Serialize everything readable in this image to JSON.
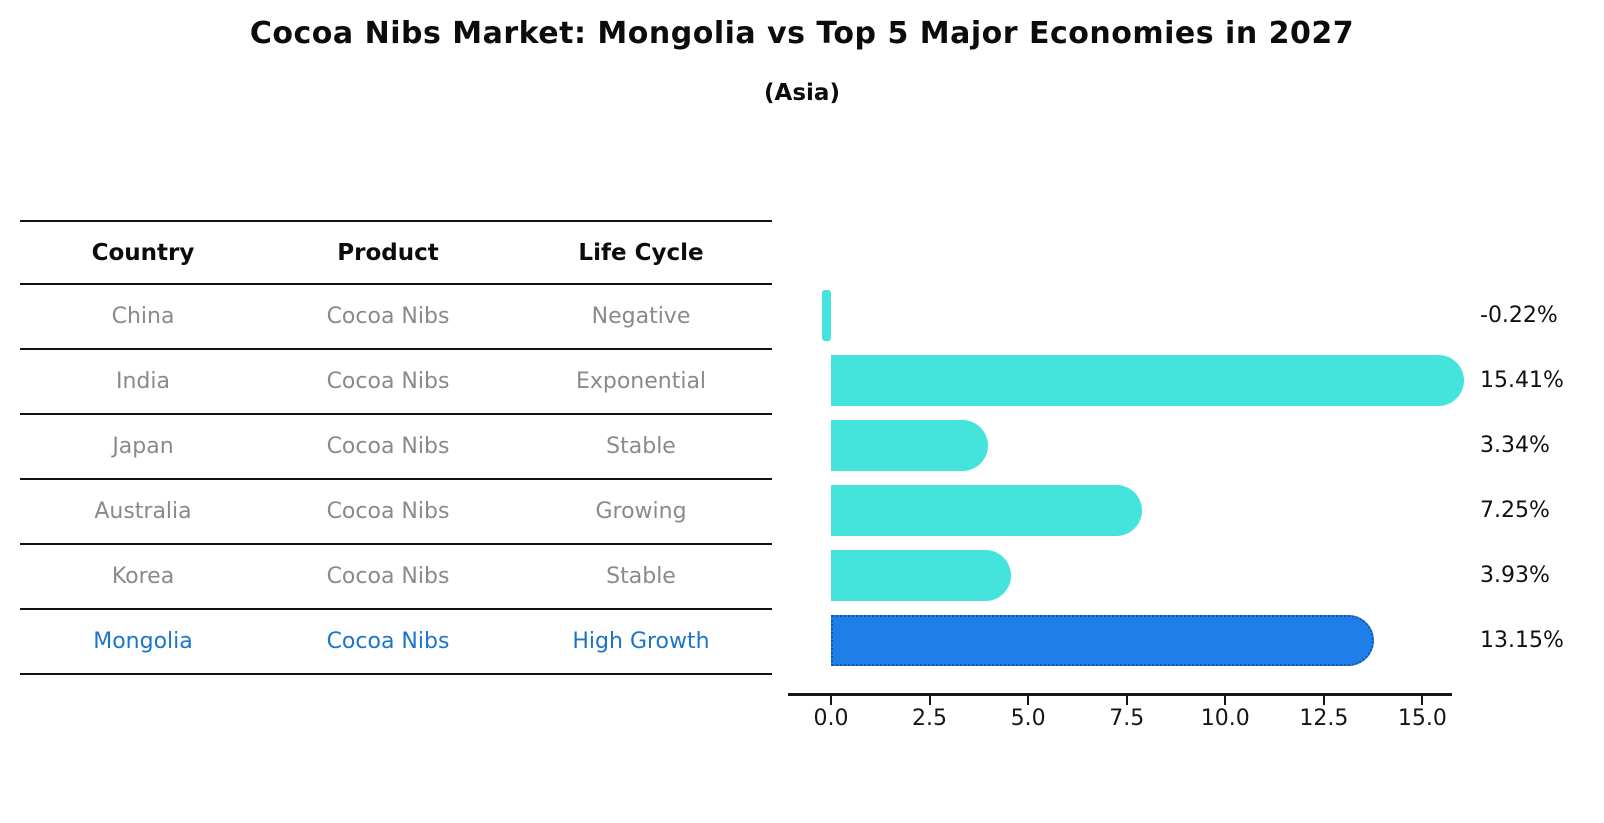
{
  "title": "Cocoa Nibs Market: Mongolia vs Top 5 Major Economies in 2027",
  "subtitle": "(Asia)",
  "table": {
    "headers": [
      "Country",
      "Product",
      "Life Cycle"
    ],
    "rows": [
      {
        "country": "China",
        "product": "Cocoa Nibs",
        "life_cycle": "Negative",
        "highlight": false
      },
      {
        "country": "India",
        "product": "Cocoa Nibs",
        "life_cycle": "Exponential",
        "highlight": false
      },
      {
        "country": "Japan",
        "product": "Cocoa Nibs",
        "life_cycle": "Stable",
        "highlight": false
      },
      {
        "country": "Australia",
        "product": "Cocoa Nibs",
        "life_cycle": "Growing",
        "highlight": false
      },
      {
        "country": "Korea",
        "product": "Cocoa Nibs",
        "life_cycle": "Stable",
        "highlight": false
      },
      {
        "country": "Mongolia",
        "product": "Cocoa Nibs",
        "life_cycle": "High Growth",
        "highlight": true
      }
    ]
  },
  "chart_data": {
    "type": "bar",
    "orientation": "horizontal",
    "title": "Cocoa Nibs Market: Mongolia vs Top 5 Major Economies in 2027",
    "subtitle": "(Asia)",
    "categories": [
      "China",
      "India",
      "Japan",
      "Australia",
      "Korea",
      "Mongolia"
    ],
    "values": [
      -0.22,
      15.41,
      3.34,
      7.25,
      3.93,
      13.15
    ],
    "value_labels": [
      "-0.22%",
      "15.41%",
      "3.34%",
      "7.25%",
      "3.93%",
      "13.15%"
    ],
    "highlight_category": "Mongolia",
    "highlight_index": 5,
    "xtick_labels": [
      "0.0",
      "2.5",
      "5.0",
      "7.5",
      "10.0",
      "12.5",
      "15.0"
    ],
    "xtick_values": [
      0,
      2.5,
      5,
      7.5,
      10,
      12.5,
      15
    ],
    "xlim": [
      -1.09,
      15.75
    ],
    "grid": false,
    "legend": false,
    "colors": {
      "bar": "#44e4dd",
      "highlight_bar": "#1e7fe8",
      "highlight_bar_border": "#1256ad",
      "highlight_text": "#1c74cc",
      "table_text": "#8a8a8a",
      "heading_text": "#0c0c0c",
      "axis": "#161616"
    }
  }
}
